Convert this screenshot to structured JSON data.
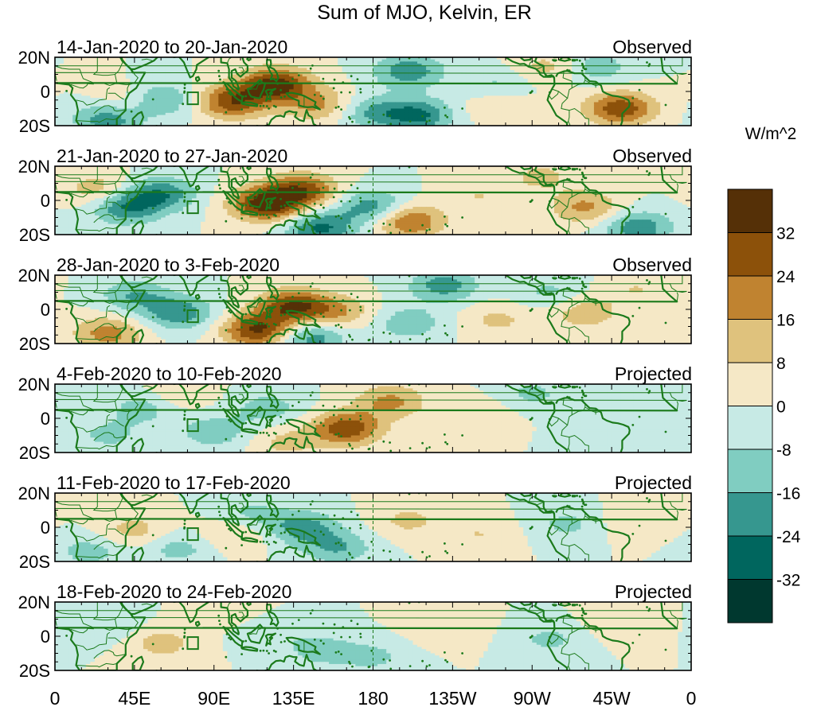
{
  "title": "Sum of MJO, Kelvin, ER",
  "colorbar": {
    "units": "W/m^2",
    "levels": [
      -40,
      -32,
      -24,
      -16,
      -8,
      0,
      8,
      16,
      24,
      32,
      40
    ],
    "tick_labels": [
      "32",
      "24",
      "16",
      "8",
      "0",
      "-8",
      "-16",
      "-24",
      "-32"
    ],
    "colors": [
      "#00382f",
      "#00665e",
      "#36978f",
      "#80cdc1",
      "#c7eae5",
      "#f5e8c6",
      "#dfc27d",
      "#c08330",
      "#8c510a",
      "#553007"
    ]
  },
  "lat_labels": [
    "20N",
    "0",
    "20S"
  ],
  "lon_labels": [
    "0",
    "45E",
    "90E",
    "135E",
    "180",
    "135W",
    "90W",
    "45W",
    "0"
  ],
  "panels": [
    {
      "period": "14-Jan-2020 to 20-Jan-2020",
      "status": "Observed"
    },
    {
      "period": "21-Jan-2020 to 27-Jan-2020",
      "status": "Observed"
    },
    {
      "period": "28-Jan-2020 to 3-Feb-2020",
      "status": "Observed"
    },
    {
      "period": "4-Feb-2020 to 10-Feb-2020",
      "status": "Projected"
    },
    {
      "period": "11-Feb-2020 to 17-Feb-2020",
      "status": "Projected"
    },
    {
      "period": "18-Feb-2020 to 24-Feb-2020",
      "status": "Projected"
    }
  ],
  "anomaly_centers": [
    [
      {
        "lon": 125,
        "lat": 4,
        "value": 36
      },
      {
        "lon": 100,
        "lat": -6,
        "value": 30
      },
      {
        "lon": 150,
        "lat": -8,
        "value": 18
      },
      {
        "lon": 40,
        "lat": -6,
        "value": 10
      },
      {
        "lon": 60,
        "lat": -5,
        "value": -18
      },
      {
        "lon": 30,
        "lat": -16,
        "value": -22
      },
      {
        "lon": 200,
        "lat": 12,
        "value": -22
      },
      {
        "lon": 205,
        "lat": -14,
        "value": -26
      },
      {
        "lon": 178,
        "lat": -12,
        "value": -16
      },
      {
        "lon": 250,
        "lat": 4,
        "value": -10
      },
      {
        "lon": 320,
        "lat": -10,
        "value": 30
      },
      {
        "lon": 280,
        "lat": 14,
        "value": 12
      },
      {
        "lon": 305,
        "lat": 14,
        "value": -14
      },
      {
        "lon": 250,
        "lat": -8,
        "value": 8
      }
    ],
    [
      {
        "lon": 120,
        "lat": -2,
        "value": 38
      },
      {
        "lon": 140,
        "lat": 6,
        "value": 28
      },
      {
        "lon": 200,
        "lat": -12,
        "value": 26
      },
      {
        "lon": 60,
        "lat": 4,
        "value": -22
      },
      {
        "lon": 40,
        "lat": -4,
        "value": -24
      },
      {
        "lon": 180,
        "lat": -4,
        "value": -22
      },
      {
        "lon": 150,
        "lat": -16,
        "value": -26
      },
      {
        "lon": 25,
        "lat": 6,
        "value": 14
      },
      {
        "lon": 330,
        "lat": -16,
        "value": -22
      },
      {
        "lon": 300,
        "lat": -4,
        "value": 18
      },
      {
        "lon": 275,
        "lat": 14,
        "value": 10
      },
      {
        "lon": 240,
        "lat": 2,
        "value": 8
      }
    ],
    [
      {
        "lon": 135,
        "lat": 2,
        "value": 32
      },
      {
        "lon": 115,
        "lat": -12,
        "value": 34
      },
      {
        "lon": 160,
        "lat": -2,
        "value": 16
      },
      {
        "lon": 45,
        "lat": 8,
        "value": -16
      },
      {
        "lon": 70,
        "lat": -2,
        "value": -22
      },
      {
        "lon": 145,
        "lat": -16,
        "value": -22
      },
      {
        "lon": 200,
        "lat": -8,
        "value": -14
      },
      {
        "lon": 220,
        "lat": 14,
        "value": -20
      },
      {
        "lon": 30,
        "lat": -14,
        "value": 20
      },
      {
        "lon": 250,
        "lat": -6,
        "value": 10
      },
      {
        "lon": 300,
        "lat": -2,
        "value": 14
      },
      {
        "lon": 280,
        "lat": 10,
        "value": -10
      },
      {
        "lon": 330,
        "lat": 12,
        "value": 8
      }
    ],
    [
      {
        "lon": 165,
        "lat": -6,
        "value": 30
      },
      {
        "lon": 190,
        "lat": 10,
        "value": 18
      },
      {
        "lon": 120,
        "lat": 6,
        "value": -12
      },
      {
        "lon": 50,
        "lat": 6,
        "value": -12
      },
      {
        "lon": 90,
        "lat": -8,
        "value": -14
      },
      {
        "lon": 30,
        "lat": -10,
        "value": -10
      },
      {
        "lon": 130,
        "lat": -14,
        "value": 10
      },
      {
        "lon": 240,
        "lat": 2,
        "value": 8
      },
      {
        "lon": 270,
        "lat": 14,
        "value": -10
      },
      {
        "lon": 310,
        "lat": -8,
        "value": -8
      },
      {
        "lon": 70,
        "lat": 14,
        "value": 8
      }
    ],
    [
      {
        "lon": 140,
        "lat": 0,
        "value": -20
      },
      {
        "lon": 160,
        "lat": -12,
        "value": -16
      },
      {
        "lon": 110,
        "lat": 8,
        "value": -10
      },
      {
        "lon": 70,
        "lat": -12,
        "value": -12
      },
      {
        "lon": 45,
        "lat": -2,
        "value": 12
      },
      {
        "lon": 100,
        "lat": -4,
        "value": 10
      },
      {
        "lon": 200,
        "lat": 4,
        "value": 10
      },
      {
        "lon": 240,
        "lat": -4,
        "value": 8
      },
      {
        "lon": 290,
        "lat": 2,
        "value": -10
      },
      {
        "lon": 330,
        "lat": 4,
        "value": 8
      },
      {
        "lon": 20,
        "lat": -14,
        "value": -12
      }
    ],
    [
      {
        "lon": 150,
        "lat": -8,
        "value": -12
      },
      {
        "lon": 120,
        "lat": 4,
        "value": -8
      },
      {
        "lon": 60,
        "lat": -4,
        "value": 12
      },
      {
        "lon": 180,
        "lat": -12,
        "value": -10
      },
      {
        "lon": 220,
        "lat": 6,
        "value": 8
      },
      {
        "lon": 280,
        "lat": -2,
        "value": -10
      },
      {
        "lon": 320,
        "lat": 8,
        "value": 6
      },
      {
        "lon": 30,
        "lat": 6,
        "value": -8
      },
      {
        "lon": 100,
        "lat": 14,
        "value": 8
      }
    ]
  ]
}
